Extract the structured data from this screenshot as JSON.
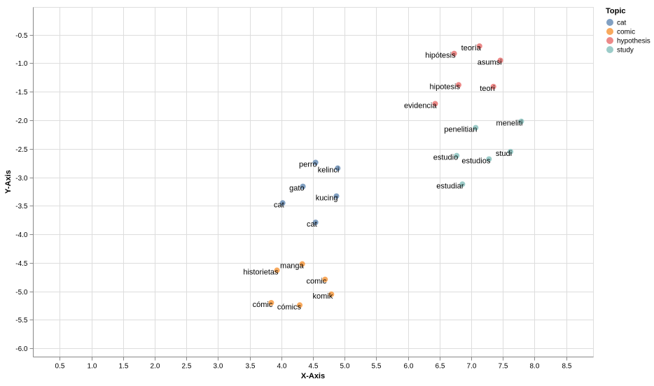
{
  "chart_data": {
    "type": "scatter",
    "xlabel": "X-Axis",
    "ylabel": "Y-Axis",
    "xlim": [
      0.08,
      8.93
    ],
    "ylim": [
      -6.15,
      -0.02
    ],
    "xticks": [
      "0.5",
      "1.0",
      "1.5",
      "2.0",
      "2.5",
      "3.0",
      "3.5",
      "4.0",
      "4.5",
      "5.0",
      "5.5",
      "6.0",
      "6.5",
      "7.0",
      "7.5",
      "8.0",
      "8.5"
    ],
    "yticks": [
      "-0.5",
      "-1.0",
      "-1.5",
      "-2.0",
      "-2.5",
      "-3.0",
      "-3.5",
      "-4.0",
      "-4.5",
      "-5.0",
      "-5.5",
      "-6.0"
    ],
    "grid": true,
    "legend": {
      "title": "Topic",
      "placement": "top-right",
      "entries": [
        {
          "name": "cat",
          "color": "#4c78a8"
        },
        {
          "name": "comic",
          "color": "#f58518"
        },
        {
          "name": "hypothesis",
          "color": "#e45756"
        },
        {
          "name": "study",
          "color": "#72b7b2"
        }
      ]
    },
    "points": [
      {
        "label": "perro",
        "topic": "cat",
        "x": 4.54,
        "y": -2.74
      },
      {
        "label": "kelinci",
        "topic": "cat",
        "x": 4.89,
        "y": -2.84
      },
      {
        "label": "gato",
        "topic": "cat",
        "x": 4.34,
        "y": -3.16
      },
      {
        "label": "kucing",
        "topic": "cat",
        "x": 4.87,
        "y": -3.33
      },
      {
        "label": "cat",
        "topic": "cat",
        "x": 4.02,
        "y": -3.45
      },
      {
        "label": "cat",
        "topic": "cat",
        "x": 4.54,
        "y": -3.79
      },
      {
        "label": "manga",
        "topic": "comic",
        "x": 4.33,
        "y": -4.52
      },
      {
        "label": "historietas",
        "topic": "comic",
        "x": 3.93,
        "y": -4.63
      },
      {
        "label": "comic",
        "topic": "comic",
        "x": 4.69,
        "y": -4.79
      },
      {
        "label": "komik",
        "topic": "comic",
        "x": 4.79,
        "y": -5.05
      },
      {
        "label": "cómic",
        "topic": "comic",
        "x": 3.84,
        "y": -5.2
      },
      {
        "label": "cómics",
        "topic": "comic",
        "x": 4.29,
        "y": -5.24
      },
      {
        "label": "teoría",
        "topic": "hypothesis",
        "x": 7.13,
        "y": -0.7
      },
      {
        "label": "hipótesis",
        "topic": "hypothesis",
        "x": 6.73,
        "y": -0.83
      },
      {
        "label": "asumsi",
        "topic": "hypothesis",
        "x": 7.46,
        "y": -0.95
      },
      {
        "label": "hipotesis",
        "topic": "hypothesis",
        "x": 6.8,
        "y": -1.38
      },
      {
        "label": "teori",
        "topic": "hypothesis",
        "x": 7.35,
        "y": -1.41
      },
      {
        "label": "evidencia",
        "topic": "hypothesis",
        "x": 6.43,
        "y": -1.71
      },
      {
        "label": "meneliti",
        "topic": "study",
        "x": 7.79,
        "y": -2.02
      },
      {
        "label": "penelitian",
        "topic": "study",
        "x": 7.07,
        "y": -2.13
      },
      {
        "label": "studi",
        "topic": "study",
        "x": 7.62,
        "y": -2.55
      },
      {
        "label": "estudio",
        "topic": "study",
        "x": 6.77,
        "y": -2.62
      },
      {
        "label": "estudios",
        "topic": "study",
        "x": 7.28,
        "y": -2.68
      },
      {
        "label": "estudiar",
        "topic": "study",
        "x": 6.86,
        "y": -3.12
      }
    ]
  }
}
